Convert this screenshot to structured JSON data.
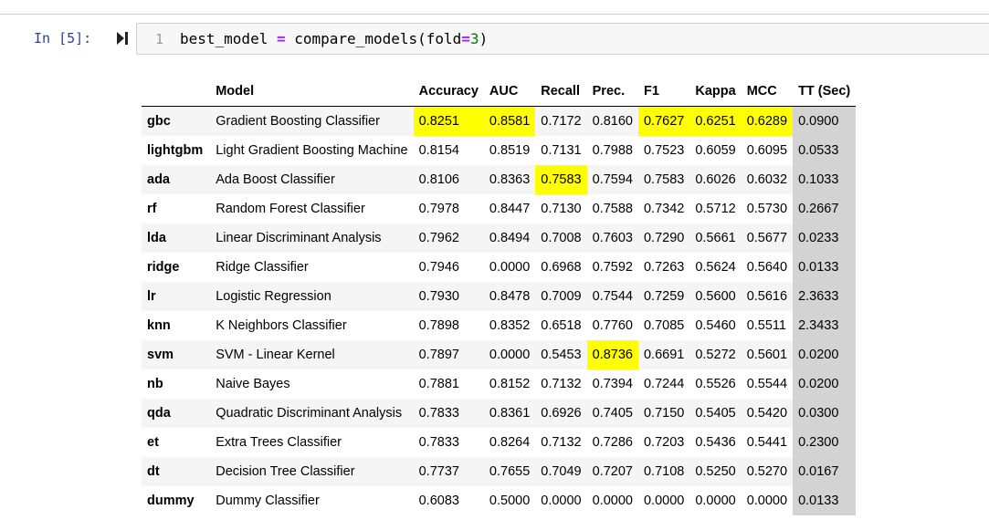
{
  "cell": {
    "prompt": "In [5]:",
    "line_number": "1",
    "code": {
      "var": "best_model",
      "op": "=",
      "call": "compare_models(fold",
      "eq": "=",
      "num": "3",
      "close": ")"
    }
  },
  "table": {
    "columns": [
      "",
      "Model",
      "Accuracy",
      "AUC",
      "Recall",
      "Prec.",
      "F1",
      "Kappa",
      "MCC",
      "TT (Sec)"
    ],
    "highlight_color": "#ffff00",
    "tt_column_color": "#d3d3d3",
    "rows": [
      {
        "idx": "gbc",
        "model": "Gradient Boosting Classifier",
        "vals": [
          "0.8251",
          "0.8581",
          "0.7172",
          "0.8160",
          "0.7627",
          "0.6251",
          "0.6289",
          "0.0900"
        ],
        "hl": [
          true,
          true,
          false,
          false,
          true,
          true,
          true
        ]
      },
      {
        "idx": "lightgbm",
        "model": "Light Gradient Boosting Machine",
        "vals": [
          "0.8154",
          "0.8519",
          "0.7131",
          "0.7988",
          "0.7523",
          "0.6059",
          "0.6095",
          "0.0533"
        ],
        "hl": [
          false,
          false,
          false,
          false,
          false,
          false,
          false
        ]
      },
      {
        "idx": "ada",
        "model": "Ada Boost Classifier",
        "vals": [
          "0.8106",
          "0.8363",
          "0.7583",
          "0.7594",
          "0.7583",
          "0.6026",
          "0.6032",
          "0.1033"
        ],
        "hl": [
          false,
          false,
          true,
          false,
          false,
          false,
          false
        ]
      },
      {
        "idx": "rf",
        "model": "Random Forest Classifier",
        "vals": [
          "0.7978",
          "0.8447",
          "0.7130",
          "0.7588",
          "0.7342",
          "0.5712",
          "0.5730",
          "0.2667"
        ],
        "hl": [
          false,
          false,
          false,
          false,
          false,
          false,
          false
        ]
      },
      {
        "idx": "lda",
        "model": "Linear Discriminant Analysis",
        "vals": [
          "0.7962",
          "0.8494",
          "0.7008",
          "0.7603",
          "0.7290",
          "0.5661",
          "0.5677",
          "0.0233"
        ],
        "hl": [
          false,
          false,
          false,
          false,
          false,
          false,
          false
        ]
      },
      {
        "idx": "ridge",
        "model": "Ridge Classifier",
        "vals": [
          "0.7946",
          "0.0000",
          "0.6968",
          "0.7592",
          "0.7263",
          "0.5624",
          "0.5640",
          "0.0133"
        ],
        "hl": [
          false,
          false,
          false,
          false,
          false,
          false,
          false
        ]
      },
      {
        "idx": "lr",
        "model": "Logistic Regression",
        "vals": [
          "0.7930",
          "0.8478",
          "0.7009",
          "0.7544",
          "0.7259",
          "0.5600",
          "0.5616",
          "2.3633"
        ],
        "hl": [
          false,
          false,
          false,
          false,
          false,
          false,
          false
        ]
      },
      {
        "idx": "knn",
        "model": "K Neighbors Classifier",
        "vals": [
          "0.7898",
          "0.8352",
          "0.6518",
          "0.7760",
          "0.7085",
          "0.5460",
          "0.5511",
          "2.3433"
        ],
        "hl": [
          false,
          false,
          false,
          false,
          false,
          false,
          false
        ]
      },
      {
        "idx": "svm",
        "model": "SVM - Linear Kernel",
        "vals": [
          "0.7897",
          "0.0000",
          "0.5453",
          "0.8736",
          "0.6691",
          "0.5272",
          "0.5601",
          "0.0200"
        ],
        "hl": [
          false,
          false,
          false,
          true,
          false,
          false,
          false
        ]
      },
      {
        "idx": "nb",
        "model": "Naive Bayes",
        "vals": [
          "0.7881",
          "0.8152",
          "0.7132",
          "0.7394",
          "0.7244",
          "0.5526",
          "0.5544",
          "0.0200"
        ],
        "hl": [
          false,
          false,
          false,
          false,
          false,
          false,
          false
        ]
      },
      {
        "idx": "qda",
        "model": "Quadratic Discriminant Analysis",
        "vals": [
          "0.7833",
          "0.8361",
          "0.6926",
          "0.7405",
          "0.7150",
          "0.5405",
          "0.5420",
          "0.0300"
        ],
        "hl": [
          false,
          false,
          false,
          false,
          false,
          false,
          false
        ]
      },
      {
        "idx": "et",
        "model": "Extra Trees Classifier",
        "vals": [
          "0.7833",
          "0.8264",
          "0.7132",
          "0.7286",
          "0.7203",
          "0.5436",
          "0.5441",
          "0.2300"
        ],
        "hl": [
          false,
          false,
          false,
          false,
          false,
          false,
          false
        ]
      },
      {
        "idx": "dt",
        "model": "Decision Tree Classifier",
        "vals": [
          "0.7737",
          "0.7655",
          "0.7049",
          "0.7207",
          "0.7108",
          "0.5250",
          "0.5270",
          "0.0167"
        ],
        "hl": [
          false,
          false,
          false,
          false,
          false,
          false,
          false
        ]
      },
      {
        "idx": "dummy",
        "model": "Dummy Classifier",
        "vals": [
          "0.6083",
          "0.5000",
          "0.0000",
          "0.0000",
          "0.0000",
          "0.0000",
          "0.0000",
          "0.0133"
        ],
        "hl": [
          false,
          false,
          false,
          false,
          false,
          false,
          false
        ]
      }
    ]
  }
}
